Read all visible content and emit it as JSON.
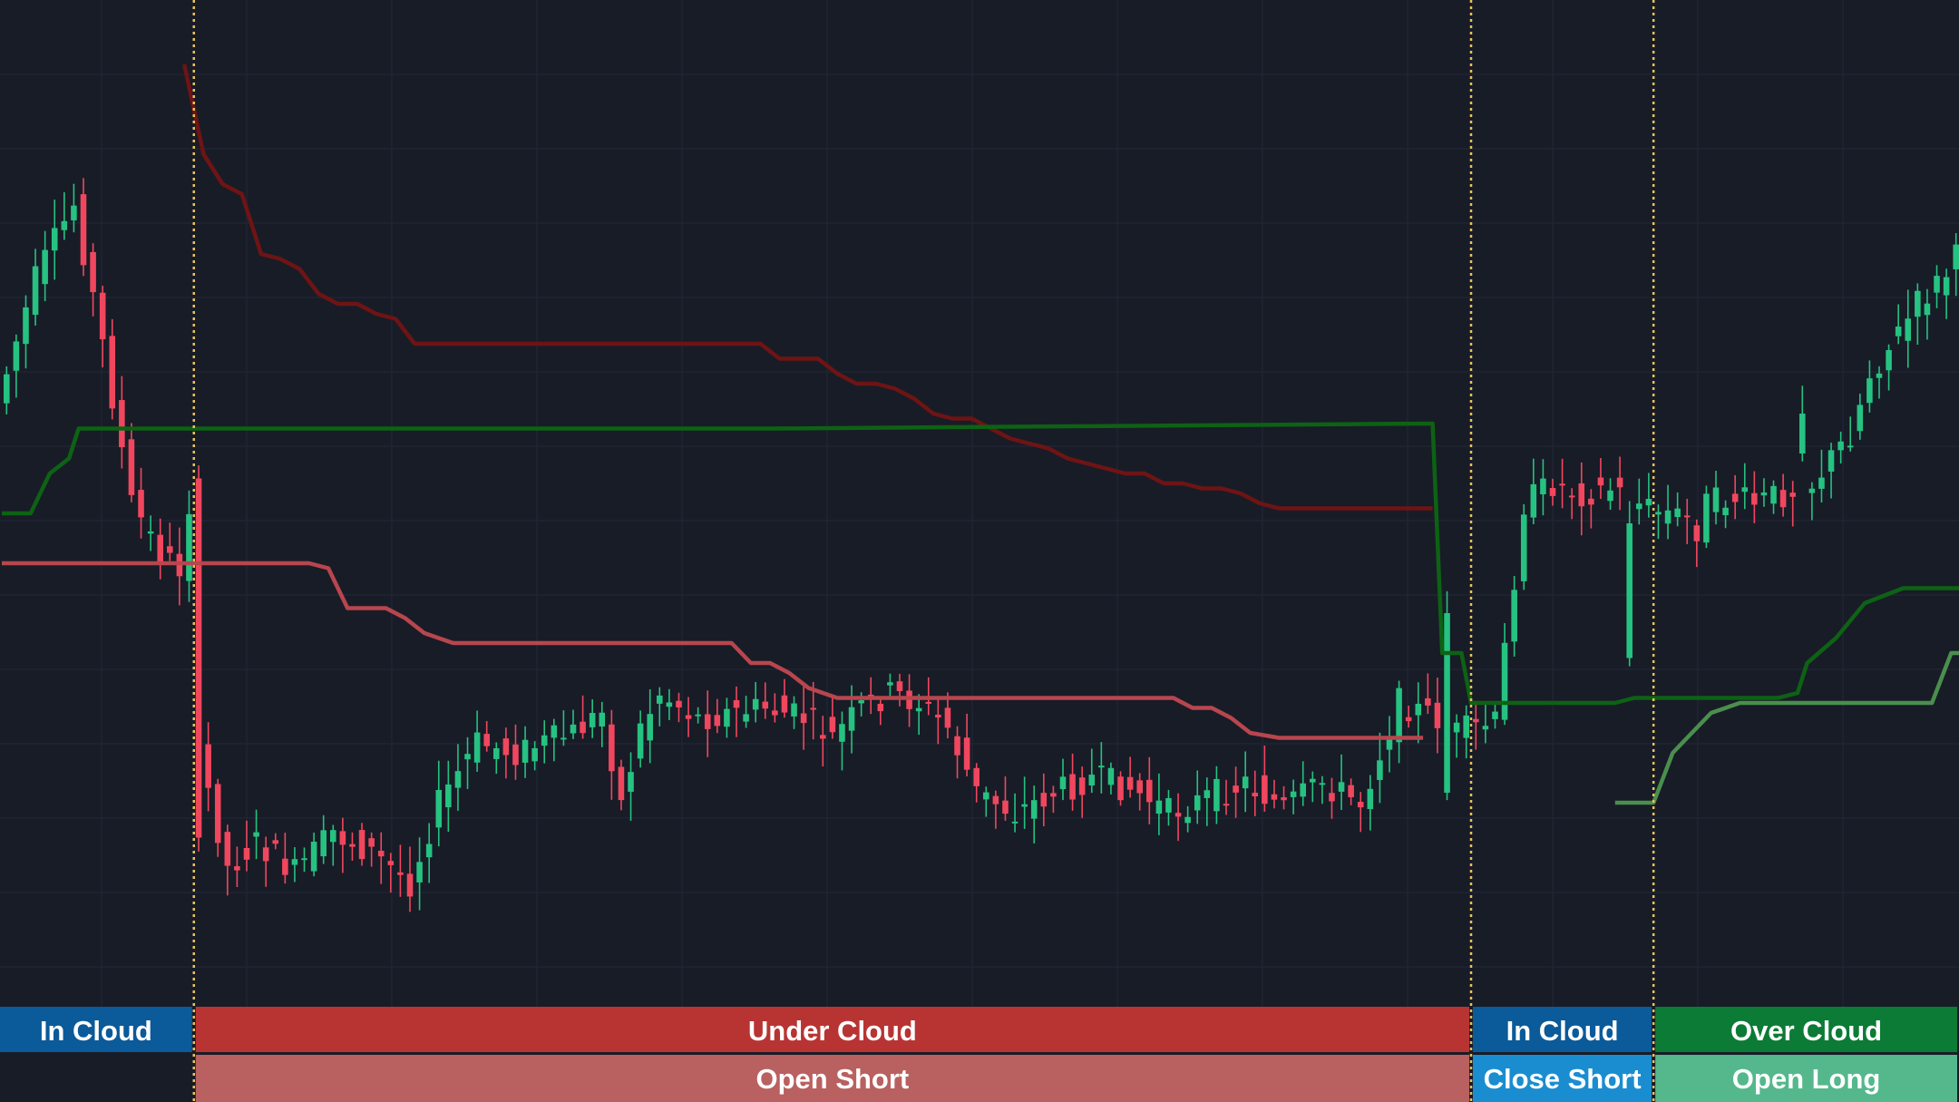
{
  "chart_data": {
    "type": "candlestick",
    "title": "",
    "xlabel": "",
    "ylabel": "",
    "grid": true,
    "colors": {
      "background": "#181c27",
      "grid": "#212533",
      "bull": "#26c281",
      "bear": "#f0475e",
      "signal_line": "#e8c25a",
      "upper_cloud_line": "#b8464e",
      "lower_cloud_line": "#6e1414",
      "support_line_dark": "#0d6214",
      "support_line_light": "#4a8f4c"
    },
    "candle_count": 204,
    "series": [
      {
        "values": [
          [
            0,
            102
          ],
          [
            32,
            102
          ],
          [
            34,
            103
          ],
          [
            36,
            111
          ],
          [
            40,
            111
          ],
          [
            42,
            113
          ],
          [
            44,
            116
          ],
          [
            47,
            118
          ],
          [
            76,
            118
          ],
          [
            78,
            122
          ],
          [
            80,
            122
          ],
          [
            82,
            124
          ],
          [
            84,
            127
          ],
          [
            87,
            129
          ],
          [
            122,
            129
          ],
          [
            124,
            131
          ],
          [
            126,
            131
          ],
          [
            128,
            133
          ],
          [
            130,
            136
          ],
          [
            133,
            137
          ],
          [
            148,
            137
          ]
        ]
      },
      {
        "values": [
          [
            19,
            2
          ],
          [
            21,
            20
          ],
          [
            23,
            26
          ],
          [
            25,
            28
          ],
          [
            27,
            40
          ],
          [
            29,
            41
          ],
          [
            31,
            43
          ],
          [
            33,
            48
          ],
          [
            35,
            50
          ],
          [
            37,
            50
          ],
          [
            39,
            52
          ],
          [
            41,
            53
          ],
          [
            43,
            58
          ],
          [
            79,
            58
          ],
          [
            81,
            61
          ],
          [
            85,
            61
          ],
          [
            87,
            64
          ],
          [
            89,
            66
          ],
          [
            91,
            66
          ],
          [
            93,
            67
          ],
          [
            95,
            69
          ],
          [
            97,
            72
          ],
          [
            99,
            73
          ],
          [
            101,
            73
          ],
          [
            103,
            75
          ],
          [
            105,
            77
          ],
          [
            107,
            78
          ],
          [
            109,
            79
          ],
          [
            111,
            81
          ],
          [
            113,
            82
          ],
          [
            115,
            83
          ],
          [
            117,
            84
          ],
          [
            119,
            84
          ],
          [
            121,
            86
          ],
          [
            123,
            86
          ],
          [
            125,
            87
          ],
          [
            127,
            87
          ],
          [
            129,
            88
          ],
          [
            131,
            90
          ],
          [
            133,
            91
          ],
          [
            149,
            91
          ]
        ]
      },
      {
        "values": [
          [
            0,
            92
          ],
          [
            3,
            92
          ],
          [
            5,
            84
          ],
          [
            7,
            81
          ],
          [
            8,
            75
          ],
          [
            80,
            75
          ],
          [
            149,
            74
          ],
          [
            150,
            120
          ],
          [
            152,
            120
          ],
          [
            153,
            130
          ],
          [
            168,
            130
          ],
          [
            170,
            129
          ],
          [
            185,
            129
          ],
          [
            187,
            128
          ],
          [
            188,
            122
          ],
          [
            191,
            117
          ],
          [
            194,
            110
          ],
          [
            198,
            107
          ],
          [
            210,
            107
          ]
        ]
      },
      {
        "values": [
          [
            168,
            150
          ],
          [
            172,
            150
          ],
          [
            174,
            140
          ],
          [
            176,
            136
          ],
          [
            178,
            132
          ],
          [
            181,
            130
          ],
          [
            201,
            130
          ],
          [
            203,
            120
          ],
          [
            210,
            120
          ]
        ]
      }
    ],
    "zones": [
      {
        "state": "In Cloud",
        "action": "",
        "color": "#0b5a99"
      },
      {
        "state": "Under Cloud",
        "action": "Open Short",
        "color": "#b83433",
        "action_color": "#b96060"
      },
      {
        "state": "In Cloud",
        "action": "Close Short",
        "color": "#0b5a99",
        "action_color": "#1a8dd0"
      },
      {
        "state": "Over Cloud",
        "action": "Open Long",
        "color": "#0b7b36",
        "action_color": "#54b88c"
      }
    ]
  }
}
